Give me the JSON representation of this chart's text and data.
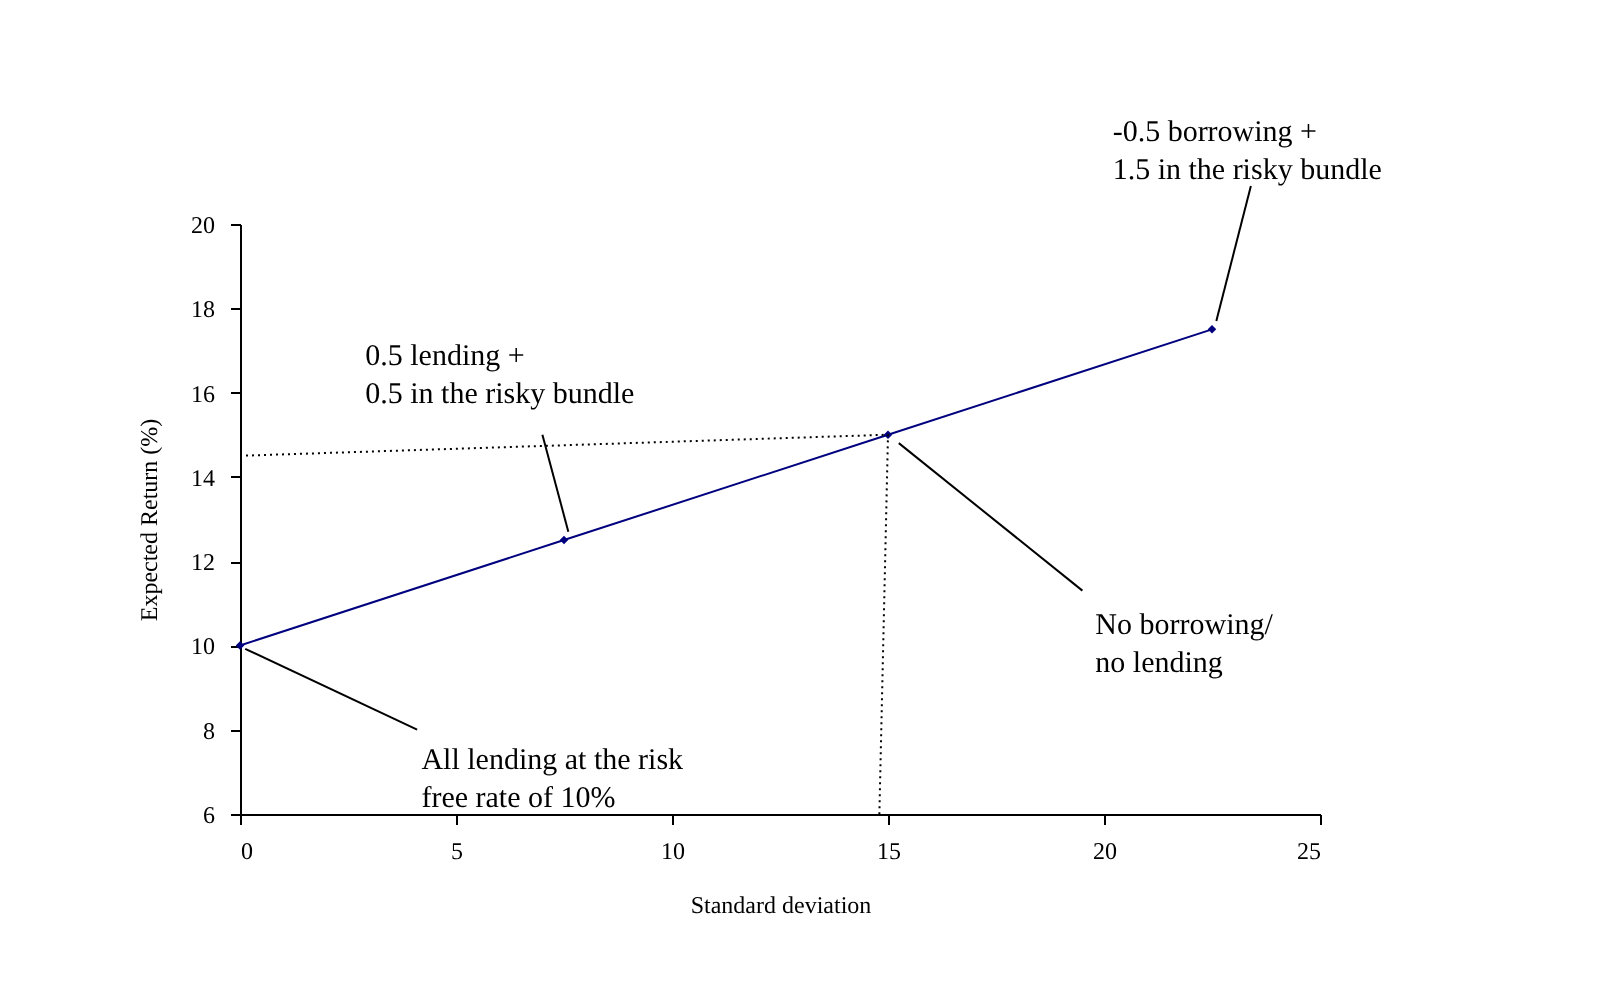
{
  "chart_data": {
    "type": "line",
    "xlabel": "Standard deviation",
    "ylabel": "Expected Return (%)",
    "x": [
      0,
      7.5,
      15,
      22.5
    ],
    "series": [
      {
        "color": "#00007f",
        "values": [
          10,
          12.5,
          15,
          17.5
        ],
        "marker": "diamond",
        "line_style": "solid"
      },
      {
        "color": "#000000",
        "x": [
          0,
          15,
          14.8
        ],
        "values": [
          14.5,
          15,
          6
        ],
        "marker": "none",
        "line_style": "dotted"
      }
    ],
    "xlim": [
      0,
      25
    ],
    "xticks": [
      0,
      5,
      10,
      15,
      20,
      25
    ],
    "ylim": [
      6,
      20
    ],
    "yticks": [
      6,
      8,
      10,
      12,
      14,
      16,
      18,
      20
    ],
    "annotations": [
      {
        "text": "0.5 lending +\n0.5 in the risky bundle",
        "x": 7.5,
        "y": 12.5
      },
      {
        "text": "-0.5 borrowing +\n1.5 in the risky bundle",
        "x": 22.5,
        "y": 17.5
      },
      {
        "text": "No borrowing/\nno lending",
        "x": 15,
        "y": 15
      },
      {
        "text": "All lending at the risk\nfree rate of 10%",
        "x": 0,
        "y": 10
      }
    ]
  }
}
